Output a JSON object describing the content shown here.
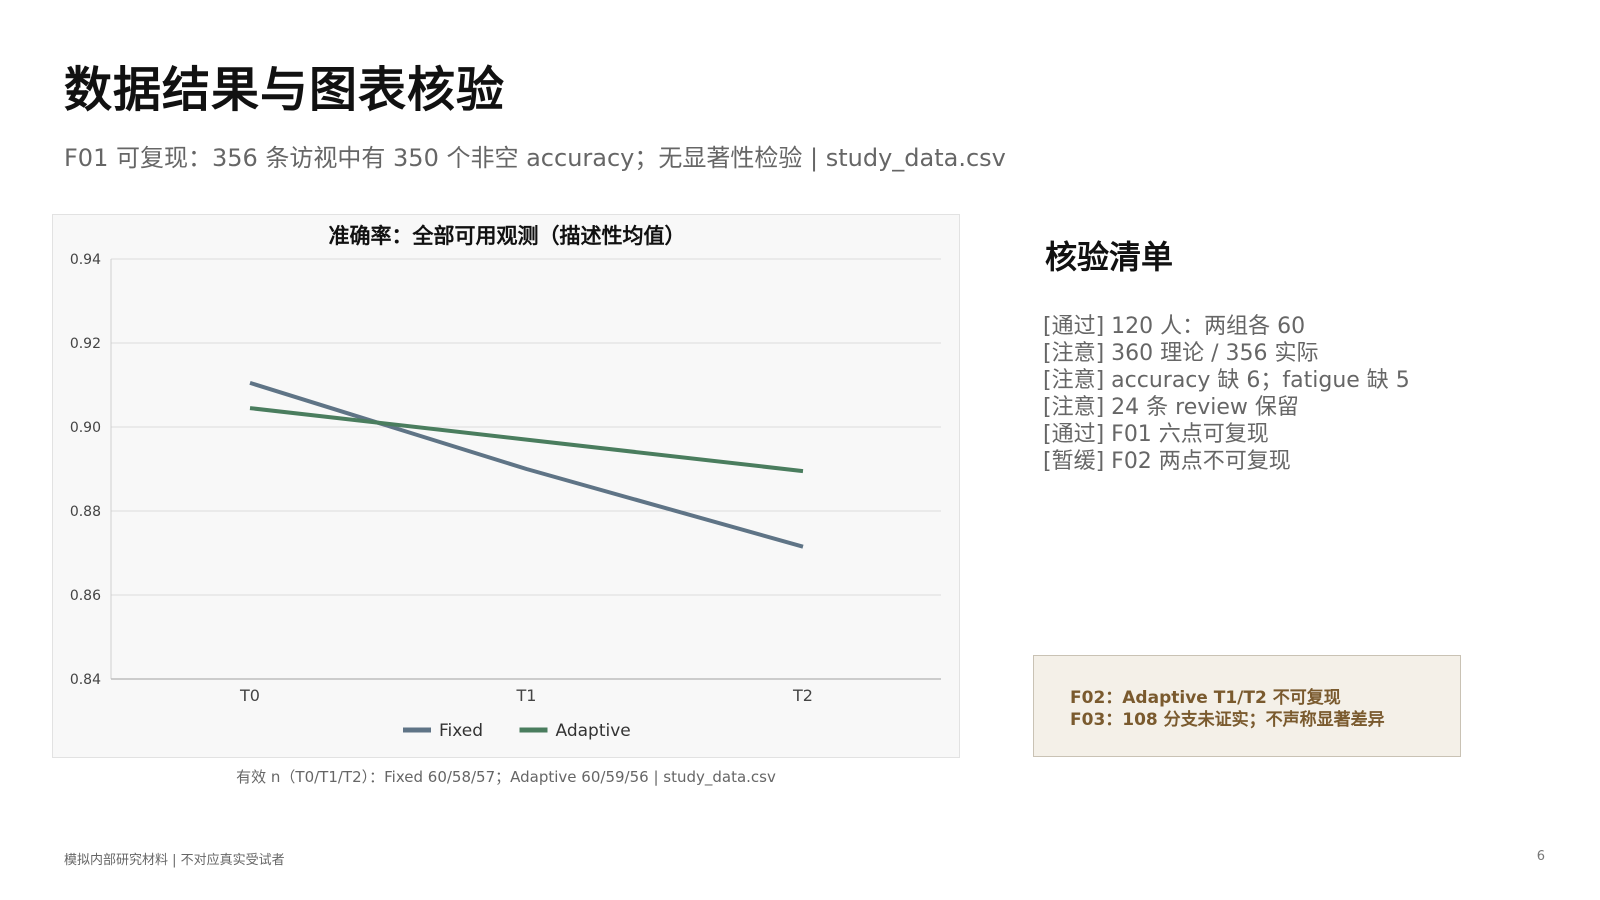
{
  "page": {
    "title": "数据结果与图表核验",
    "subtitle": "F01 可复现：356 条访视中有 350 个非空 accuracy；无显著性检验 | study_data.csv",
    "chart_caption": "有效 n（T0/T1/T2）：Fixed 60/58/57；Adaptive 60/59/56 | study_data.csv",
    "footer": "模拟内部研究材料 | 不对应真实受试者",
    "page_number": "6"
  },
  "checklist": {
    "title": "核验清单",
    "items": [
      "[通过] 120 人：两组各 60",
      "[注意] 360 理论 / 356 实际",
      "[注意] accuracy 缺 6；fatigue 缺 5",
      "[注意] 24 条 review 保留",
      "[通过] F01 六点可复现",
      "[暂缓] F02 两点不可复现"
    ]
  },
  "note": {
    "lines": [
      "F02：Adaptive T1/T2 不可复现",
      "F03：108 分支未证实；不声称显著差异"
    ]
  },
  "chart_data": {
    "type": "line",
    "title": "准确率：全部可用观测（描述性均值）",
    "xlabel": "",
    "ylabel": "",
    "categories": [
      "T0",
      "T1",
      "T2"
    ],
    "ylim": [
      0.84,
      0.94
    ],
    "yticks": [
      "0.84",
      "0.86",
      "0.88",
      "0.90",
      "0.92",
      "0.94"
    ],
    "grid": true,
    "legend_position": "bottom-center",
    "series": [
      {
        "name": "Fixed",
        "color": "#5f7486",
        "values": [
          0.9105,
          0.89,
          0.8715
        ]
      },
      {
        "name": "Adaptive",
        "color": "#4a7d5e",
        "values": [
          0.9045,
          0.897,
          0.8895
        ]
      }
    ]
  }
}
